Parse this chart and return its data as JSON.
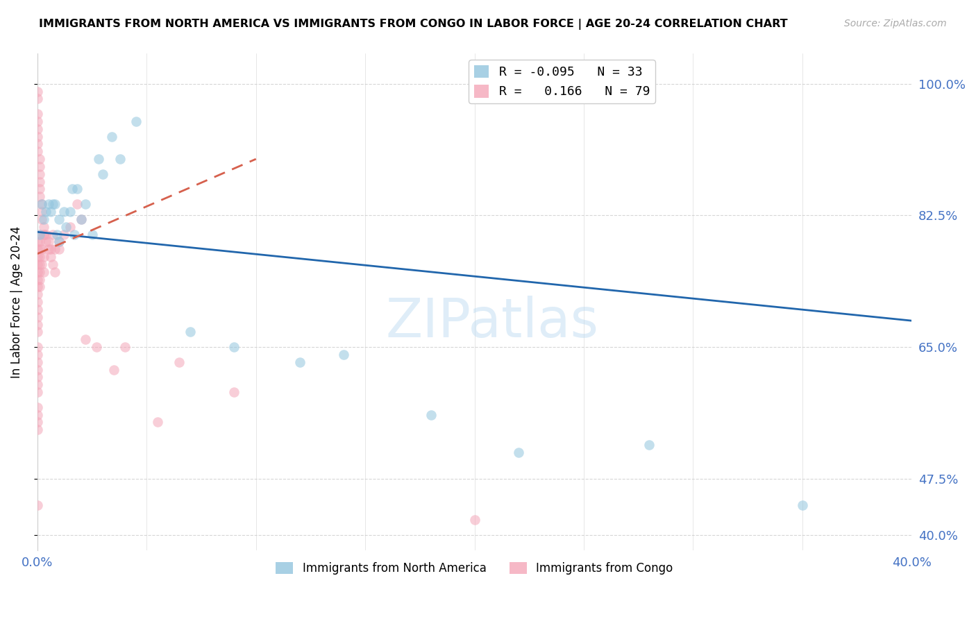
{
  "title": "IMMIGRANTS FROM NORTH AMERICA VS IMMIGRANTS FROM CONGO IN LABOR FORCE | AGE 20-24 CORRELATION CHART",
  "source": "Source: ZipAtlas.com",
  "ylabel": "In Labor Force | Age 20-24",
  "xlim": [
    0.0,
    0.4
  ],
  "ylim": [
    0.38,
    1.04
  ],
  "yticks": [
    0.4,
    0.475,
    0.65,
    0.825,
    1.0
  ],
  "ytick_labels": [
    "40.0%",
    "47.5%",
    "65.0%",
    "82.5%",
    "100.0%"
  ],
  "xticks": [
    0.0,
    0.05,
    0.1,
    0.15,
    0.2,
    0.25,
    0.3,
    0.35,
    0.4
  ],
  "xtick_labels": [
    "0.0%",
    "",
    "",
    "",
    "",
    "",
    "",
    "",
    "40.0%"
  ],
  "legend_labels_bottom": [
    "Immigrants from North America",
    "Immigrants from Congo"
  ],
  "blue_color": "#92c5de",
  "pink_color": "#f4a6b8",
  "blue_line_color": "#2166ac",
  "pink_line_color": "#d6604d",
  "watermark": "ZIPatlas",
  "north_america_x": [
    0.001,
    0.002,
    0.003,
    0.004,
    0.005,
    0.006,
    0.007,
    0.008,
    0.009,
    0.01,
    0.01,
    0.012,
    0.013,
    0.015,
    0.016,
    0.017,
    0.018,
    0.02,
    0.022,
    0.025,
    0.028,
    0.03,
    0.034,
    0.038,
    0.045,
    0.07,
    0.09,
    0.12,
    0.14,
    0.18,
    0.22,
    0.28,
    0.35
  ],
  "north_america_y": [
    0.8,
    0.84,
    0.82,
    0.83,
    0.84,
    0.83,
    0.84,
    0.84,
    0.8,
    0.82,
    0.79,
    0.83,
    0.81,
    0.83,
    0.86,
    0.8,
    0.86,
    0.82,
    0.84,
    0.8,
    0.9,
    0.88,
    0.93,
    0.9,
    0.95,
    0.67,
    0.65,
    0.63,
    0.64,
    0.56,
    0.51,
    0.52,
    0.44
  ],
  "congo_x": [
    0.0,
    0.0,
    0.0,
    0.0,
    0.0,
    0.0,
    0.0,
    0.0,
    0.001,
    0.001,
    0.001,
    0.001,
    0.001,
    0.001,
    0.002,
    0.002,
    0.002,
    0.003,
    0.003,
    0.004,
    0.005,
    0.006,
    0.007,
    0.008,
    0.01,
    0.012,
    0.015,
    0.018,
    0.02,
    0.0,
    0.0,
    0.0,
    0.0,
    0.0,
    0.0,
    0.0,
    0.0,
    0.0,
    0.0,
    0.0,
    0.0,
    0.0,
    0.0,
    0.0,
    0.001,
    0.001,
    0.001,
    0.001,
    0.001,
    0.001,
    0.001,
    0.001,
    0.002,
    0.002,
    0.003,
    0.003,
    0.004,
    0.005,
    0.006,
    0.007,
    0.008,
    0.01,
    0.0,
    0.0,
    0.0,
    0.0,
    0.0,
    0.0,
    0.0,
    0.0,
    0.0,
    0.0,
    0.003,
    0.022,
    0.027,
    0.035,
    0.04,
    0.055,
    0.065,
    0.09,
    0.2
  ],
  "congo_y": [
    0.99,
    0.98,
    0.96,
    0.95,
    0.94,
    0.93,
    0.92,
    0.91,
    0.9,
    0.89,
    0.88,
    0.87,
    0.86,
    0.85,
    0.84,
    0.83,
    0.82,
    0.81,
    0.8,
    0.8,
    0.79,
    0.78,
    0.8,
    0.78,
    0.79,
    0.8,
    0.81,
    0.84,
    0.82,
    0.79,
    0.78,
    0.77,
    0.76,
    0.75,
    0.74,
    0.73,
    0.72,
    0.71,
    0.7,
    0.69,
    0.68,
    0.67,
    0.65,
    0.64,
    0.8,
    0.79,
    0.78,
    0.77,
    0.76,
    0.75,
    0.74,
    0.73,
    0.78,
    0.76,
    0.77,
    0.75,
    0.79,
    0.78,
    0.77,
    0.76,
    0.75,
    0.78,
    0.63,
    0.62,
    0.61,
    0.6,
    0.59,
    0.57,
    0.56,
    0.55,
    0.54,
    0.44,
    0.8,
    0.66,
    0.65,
    0.62,
    0.65,
    0.55,
    0.63,
    0.59,
    0.42
  ],
  "blue_trendline_x": [
    0.0,
    0.4
  ],
  "blue_trendline_y": [
    0.803,
    0.685
  ],
  "pink_trendline_x": [
    0.0,
    0.1
  ],
  "pink_trendline_y": [
    0.774,
    0.9
  ]
}
